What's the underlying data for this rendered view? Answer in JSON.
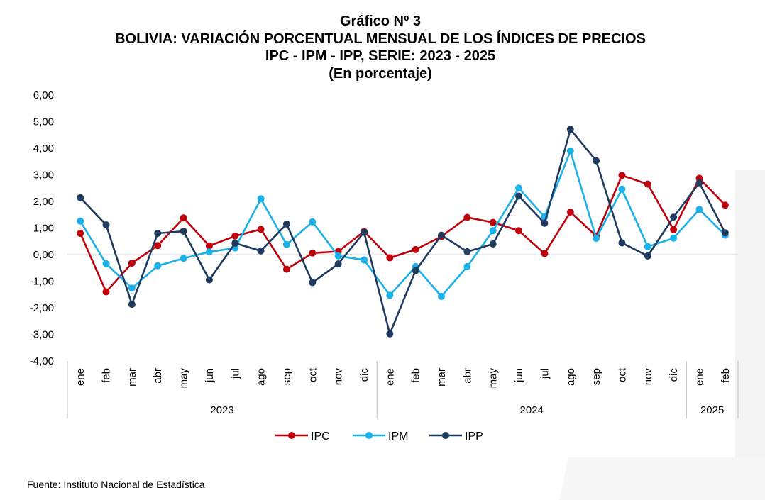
{
  "header": {
    "title_line1": "Gráfico Nº 3",
    "title_line2": "BOLIVIA: VARIACIÓN PORCENTUAL MENSUAL DE LOS ÍNDICES DE PRECIOS",
    "title_line3": "IPC - IPM - IPP, SERIE: 2023 - 2025",
    "title_line4": "(En porcentaje)"
  },
  "footer": {
    "source": "Fuente: Instituto Nacional de Estadística"
  },
  "chart_data": {
    "type": "line",
    "ylim": [
      -4,
      6
    ],
    "yticks": [
      "-4,00",
      "-3,00",
      "-2,00",
      "-1,00",
      "0,00",
      "1,00",
      "2,00",
      "3,00",
      "4,00",
      "5,00",
      "6,00"
    ],
    "categories": [
      "ene",
      "feb",
      "mar",
      "abr",
      "may",
      "jun",
      "jul",
      "ago",
      "sep",
      "oct",
      "nov",
      "dic",
      "ene",
      "feb",
      "mar",
      "abr",
      "may",
      "jun",
      "jul",
      "ago",
      "sep",
      "oct",
      "nov",
      "dic",
      "ene",
      "feb"
    ],
    "year_groups": [
      {
        "label": "2023",
        "count": 12
      },
      {
        "label": "2024",
        "count": 12
      },
      {
        "label": "2025",
        "count": 2
      }
    ],
    "grid": false,
    "legend_position": "bottom",
    "series": [
      {
        "name": "IPC",
        "color": "#c0000b",
        "values": [
          0.8,
          -1.4,
          -0.32,
          0.34,
          1.38,
          0.33,
          0.7,
          0.95,
          -0.55,
          0.06,
          0.12,
          0.87,
          -0.12,
          0.19,
          0.68,
          1.4,
          1.21,
          0.9,
          0.04,
          1.6,
          0.7,
          2.98,
          2.65,
          0.94,
          2.87,
          1.86
        ]
      },
      {
        "name": "IPM",
        "color": "#1ab0e8",
        "values": [
          1.26,
          -0.34,
          -1.26,
          -0.42,
          -0.14,
          0.1,
          0.25,
          2.1,
          0.38,
          1.23,
          -0.05,
          -0.2,
          -1.53,
          -0.45,
          -1.57,
          -0.45,
          0.9,
          2.5,
          1.42,
          3.9,
          0.61,
          2.46,
          0.3,
          0.62,
          1.7,
          0.73
        ]
      },
      {
        "name": "IPP",
        "color": "#1f3a5f",
        "values": [
          2.14,
          1.12,
          -1.87,
          0.8,
          0.88,
          -0.95,
          0.43,
          0.14,
          1.15,
          -1.05,
          -0.35,
          0.84,
          -2.98,
          -0.6,
          0.73,
          0.11,
          0.4,
          2.2,
          1.18,
          4.71,
          3.53,
          0.44,
          -0.05,
          1.41,
          2.7,
          0.82
        ]
      }
    ]
  }
}
